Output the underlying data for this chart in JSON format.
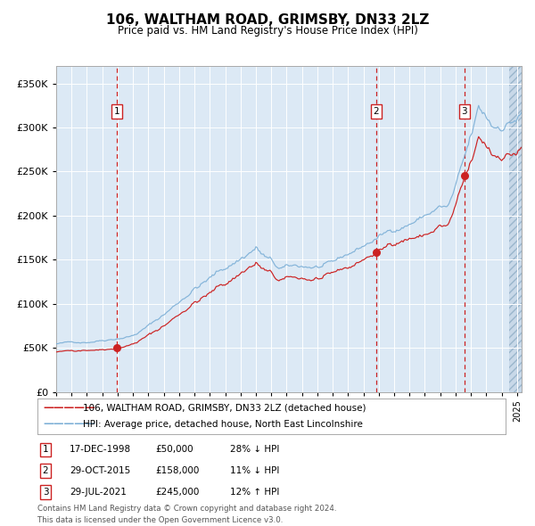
{
  "title": "106, WALTHAM ROAD, GRIMSBY, DN33 2LZ",
  "subtitle": "Price paid vs. HM Land Registry's House Price Index (HPI)",
  "ylim": [
    0,
    370000
  ],
  "yticks": [
    0,
    50000,
    100000,
    150000,
    200000,
    250000,
    300000,
    350000
  ],
  "ytick_labels": [
    "£0",
    "£50K",
    "£100K",
    "£150K",
    "£200K",
    "£250K",
    "£300K",
    "£350K"
  ],
  "background_color": "#dce9f5",
  "grid_color": "#ffffff",
  "red_line_color": "#cc2222",
  "blue_line_color": "#7aaed6",
  "dashed_line_color": "#cc2222",
  "sale1_date_num": 1998.96,
  "sale1_price": 50000,
  "sale1_label": "1",
  "sale1_date_str": "17-DEC-1998",
  "sale1_price_str": "£50,000",
  "sale1_hpi_diff": "28% ↓ HPI",
  "sale2_date_num": 2015.83,
  "sale2_price": 158000,
  "sale2_label": "2",
  "sale2_date_str": "29-OCT-2015",
  "sale2_price_str": "£158,000",
  "sale2_hpi_diff": "11% ↓ HPI",
  "sale3_date_num": 2021.58,
  "sale3_price": 245000,
  "sale3_label": "3",
  "sale3_date_str": "29-JUL-2021",
  "sale3_price_str": "£245,000",
  "sale3_hpi_diff": "12% ↑ HPI",
  "xmin": 1995.0,
  "xmax": 2025.3,
  "hatch_start": 2024.5,
  "legend_line1": "106, WALTHAM ROAD, GRIMSBY, DN33 2LZ (detached house)",
  "legend_line2": "HPI: Average price, detached house, North East Lincolnshire",
  "footer1": "Contains HM Land Registry data © Crown copyright and database right 2024.",
  "footer2": "This data is licensed under the Open Government Licence v3.0."
}
